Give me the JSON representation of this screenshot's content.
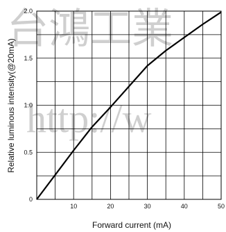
{
  "chart_data": {
    "type": "line",
    "xlabel": "Forward current (mA)",
    "ylabel": "Relative luminous intensity(@20mA)",
    "xlim": [
      0,
      50
    ],
    "ylim": [
      0,
      2.0
    ],
    "x_ticks": [
      0,
      10,
      20,
      30,
      40,
      50
    ],
    "x_tick_labels": [
      "",
      "10",
      "20",
      "30",
      "40",
      "50"
    ],
    "y_ticks": [
      0,
      0.5,
      1.0,
      1.5,
      2.0
    ],
    "y_tick_labels": [
      "0",
      "0.5",
      "1.0",
      "1.5",
      "2.0"
    ],
    "grid": true,
    "x_minor_step": 5,
    "y_minor_step": 0.25,
    "series": [
      {
        "x": [
          0,
          5,
          10,
          15,
          20,
          25,
          30,
          35,
          40,
          45,
          50
        ],
        "y": [
          0,
          0.26,
          0.52,
          0.77,
          0.98,
          1.2,
          1.42,
          1.58,
          1.72,
          1.86,
          1.99
        ]
      }
    ]
  },
  "watermark": {
    "line1": "台鴻工業",
    "line2": "http://w"
  },
  "colors": {
    "line": "#000000",
    "grid": "#000000",
    "watermark": "#cfcfcf"
  }
}
